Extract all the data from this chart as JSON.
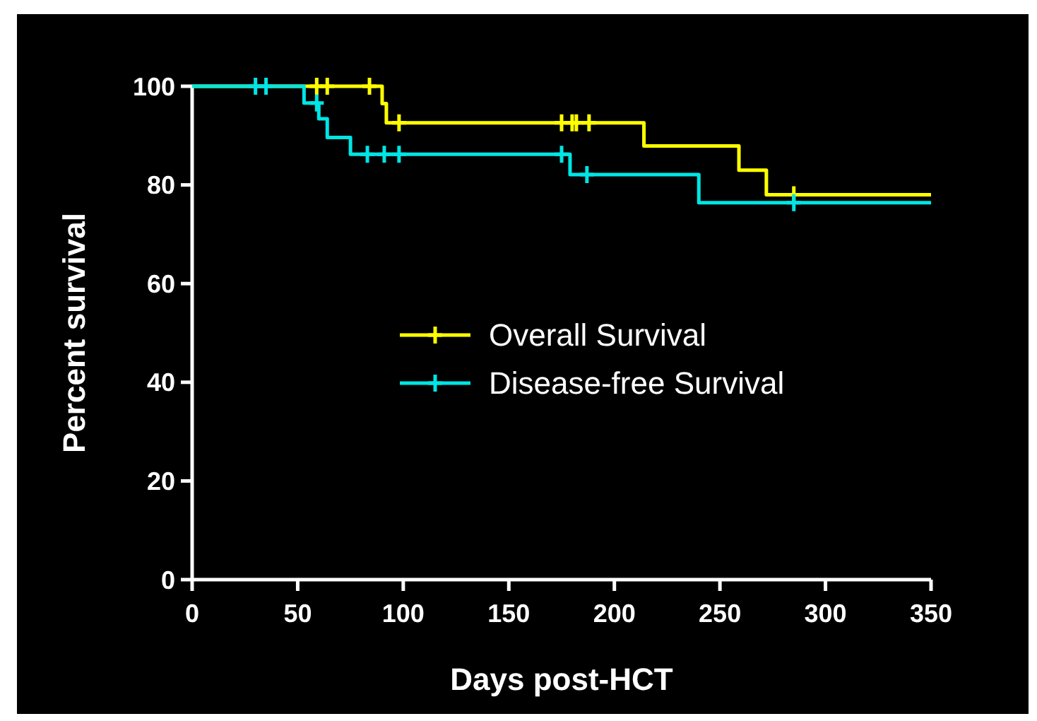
{
  "chart_data": {
    "type": "step",
    "xlabel": "Days post-HCT",
    "ylabel": "Percent survival",
    "xlim": [
      0,
      350
    ],
    "ylim": [
      0,
      100
    ],
    "xticks": [
      0,
      50,
      100,
      150,
      200,
      250,
      300,
      350
    ],
    "yticks": [
      0,
      20,
      40,
      60,
      80,
      100
    ],
    "grid": false,
    "legend": "center",
    "line_style": "solid",
    "series": [
      {
        "name": "Overall Survival",
        "color": "#ffff00",
        "x": [
          0,
          90,
          92,
          214,
          259,
          272,
          350
        ],
        "values": [
          100,
          96.5,
          92.6,
          87.9,
          83.0,
          78.0,
          78.0
        ]
      },
      {
        "name": "Disease-free Survival",
        "color": "#00e5e5",
        "x": [
          0,
          53,
          60,
          64,
          75,
          179,
          240,
          350
        ],
        "values": [
          100,
          96.6,
          93.4,
          89.6,
          86.2,
          82.1,
          76.4,
          76.4
        ]
      },
      {
        "type": "scatter",
        "marker": "cross",
        "color": "#ffff00",
        "x": [
          59,
          64,
          84,
          98,
          175,
          180,
          182,
          188,
          285
        ],
        "values": [
          100,
          100,
          100,
          92.6,
          92.6,
          92.6,
          92.6,
          92.6,
          78.0
        ]
      },
      {
        "type": "scatter",
        "marker": "cross",
        "color": "#00e5e5",
        "x": [
          30,
          35,
          59,
          83,
          91,
          98,
          175,
          187,
          285
        ],
        "values": [
          100,
          100,
          96.6,
          86.2,
          86.2,
          86.2,
          86.2,
          82.1,
          76.4
        ]
      }
    ]
  }
}
